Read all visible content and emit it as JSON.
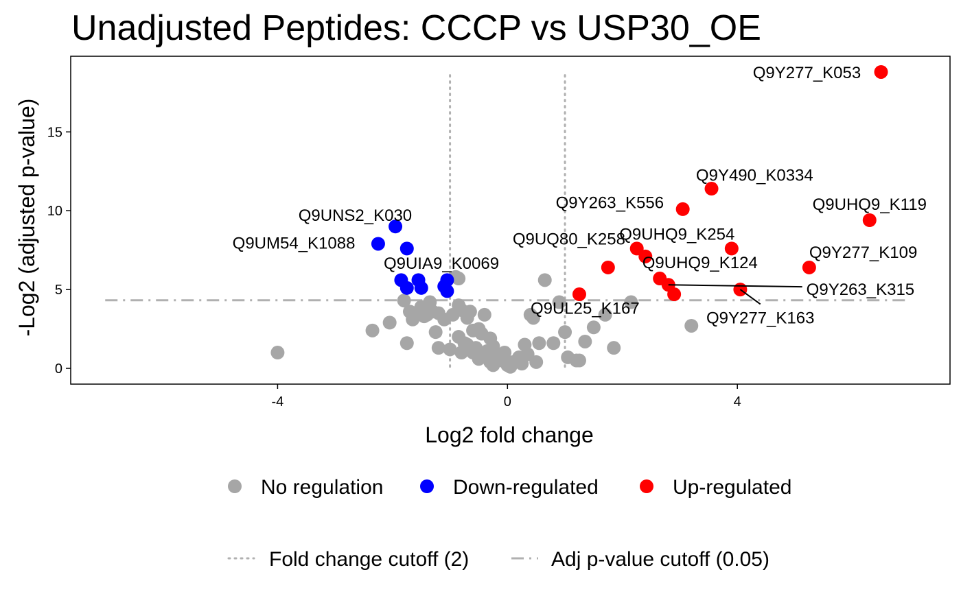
{
  "chart_data": {
    "type": "scatter",
    "title": "Unadjusted Peptides: CCCP vs USP30_OE",
    "xlabel": "Log2 fold change",
    "ylabel": "-Log2 (adjusted p-value)",
    "xlim": [
      -7.6,
      7.7
    ],
    "ylim": [
      -1.0,
      19.8
    ],
    "x_ticks": [
      -4,
      0,
      4
    ],
    "x_tick_labels": [
      "-4",
      "0",
      "4"
    ],
    "y_ticks": [
      0,
      5,
      10,
      15
    ],
    "y_tick_labels": [
      "0",
      "5",
      "10",
      "15"
    ],
    "grid": false,
    "legend_position": "bottom",
    "thresholds": {
      "fold_change_lines": [
        -1,
        1
      ],
      "pvalue_line": 4.32
    },
    "colors": {
      "none": "#a6a6a6",
      "down": "#0000ff",
      "up": "#ff0000",
      "cutoff_line": "#b0b0b0"
    },
    "legend_points": [
      {
        "label": "No regulation",
        "color": "#a6a6a6"
      },
      {
        "label": "Down-regulated",
        "color": "#0000ff"
      },
      {
        "label": "Up-regulated",
        "color": "#ff0000"
      }
    ],
    "legend_lines": [
      {
        "label": "Fold change cutoff (2)",
        "style": "dotted"
      },
      {
        "label": "Adj p-value cutoff (0.05)",
        "style": "dashdot"
      }
    ],
    "series": [
      {
        "name": "No regulation",
        "color": "#a6a6a6",
        "points": [
          [
            -4.0,
            1.0
          ],
          [
            -2.35,
            2.4
          ],
          [
            -2.05,
            2.9
          ],
          [
            -1.8,
            4.3
          ],
          [
            -1.75,
            1.6
          ],
          [
            -1.7,
            3.6
          ],
          [
            -1.65,
            3.1
          ],
          [
            -1.55,
            3.6
          ],
          [
            -1.5,
            3.9
          ],
          [
            -1.45,
            3.3
          ],
          [
            -1.4,
            3.4
          ],
          [
            -1.35,
            4.2
          ],
          [
            -1.3,
            3.6
          ],
          [
            -1.25,
            2.3
          ],
          [
            -1.2,
            1.3
          ],
          [
            -1.2,
            3.5
          ],
          [
            -1.1,
            3.1
          ],
          [
            -1.0,
            1.2
          ],
          [
            -0.95,
            3.4
          ],
          [
            -0.9,
            5.8
          ],
          [
            -0.85,
            5.7
          ],
          [
            -0.85,
            4.0
          ],
          [
            -0.8,
            3.7
          ],
          [
            -0.75,
            1.6
          ],
          [
            -0.7,
            3.2
          ],
          [
            -0.65,
            3.6
          ],
          [
            -0.6,
            1.0
          ],
          [
            -0.55,
            1.1
          ],
          [
            -0.5,
            2.5
          ],
          [
            -0.45,
            2.2
          ],
          [
            -0.4,
            3.4
          ],
          [
            -0.3,
            1.9
          ],
          [
            -0.3,
            0.4
          ],
          [
            -0.25,
            1.4
          ],
          [
            -0.2,
            0.9
          ],
          [
            -0.15,
            0.6
          ],
          [
            -0.1,
            0.5
          ],
          [
            -0.05,
            1.0
          ],
          [
            0.0,
            0.2
          ],
          [
            0.05,
            0.1
          ],
          [
            0.1,
            0.4
          ],
          [
            0.2,
            0.7
          ],
          [
            0.25,
            0.3
          ],
          [
            0.3,
            1.5
          ],
          [
            0.35,
            0.9
          ],
          [
            0.4,
            3.4
          ],
          [
            0.45,
            3.2
          ],
          [
            0.5,
            0.4
          ],
          [
            0.55,
            1.6
          ],
          [
            0.65,
            5.6
          ],
          [
            0.8,
            1.6
          ],
          [
            0.9,
            4.2
          ],
          [
            1.0,
            2.3
          ],
          [
            1.05,
            0.7
          ],
          [
            1.2,
            0.5
          ],
          [
            1.25,
            0.5
          ],
          [
            1.35,
            1.7
          ],
          [
            1.5,
            2.6
          ],
          [
            1.7,
            3.4
          ],
          [
            1.85,
            1.3
          ],
          [
            2.15,
            4.2
          ],
          [
            3.2,
            2.7
          ],
          [
            -0.85,
            2.0
          ],
          [
            -0.7,
            1.5
          ],
          [
            -0.55,
            1.3
          ],
          [
            -0.5,
            0.6
          ],
          [
            -0.35,
            1.1
          ],
          [
            -0.6,
            2.4
          ],
          [
            -0.45,
            0.8
          ],
          [
            -0.65,
            1.2
          ],
          [
            -0.8,
            1.0
          ],
          [
            -0.25,
            0.2
          ]
        ]
      },
      {
        "name": "Down-regulated",
        "color": "#0000ff",
        "points": [
          [
            -2.25,
            7.9
          ],
          [
            -1.95,
            9.0
          ],
          [
            -1.75,
            7.6
          ],
          [
            -1.85,
            5.6
          ],
          [
            -1.75,
            5.1
          ],
          [
            -1.55,
            5.6
          ],
          [
            -1.5,
            5.1
          ],
          [
            -1.1,
            5.2
          ],
          [
            -1.05,
            5.6
          ],
          [
            -1.05,
            4.9
          ]
        ]
      },
      {
        "name": "Up-regulated",
        "color": "#ff0000",
        "points": [
          [
            6.5,
            18.8
          ],
          [
            3.55,
            11.4
          ],
          [
            3.05,
            10.1
          ],
          [
            6.3,
            9.4
          ],
          [
            2.25,
            7.6
          ],
          [
            2.4,
            7.1
          ],
          [
            3.9,
            7.6
          ],
          [
            1.75,
            6.4
          ],
          [
            5.25,
            6.4
          ],
          [
            2.65,
            5.7
          ],
          [
            2.8,
            5.3
          ],
          [
            2.9,
            4.7
          ],
          [
            4.05,
            5.0
          ],
          [
            1.25,
            4.7
          ]
        ]
      }
    ],
    "annotations": [
      {
        "text": "Q9Y277_K053",
        "x": 6.5,
        "y": 18.8,
        "label_x": 6.15,
        "label_y": 18.75,
        "anchor": "end",
        "leader": false
      },
      {
        "text": "Q9Y490_K0334",
        "x": 3.55,
        "y": 11.4,
        "label_x": 4.3,
        "label_y": 12.25,
        "anchor": "middle",
        "leader": false
      },
      {
        "text": "Q9Y263_K556",
        "x": 3.05,
        "y": 10.1,
        "label_x": 2.72,
        "label_y": 10.5,
        "anchor": "end",
        "leader": false
      },
      {
        "text": "Q9UHQ9_K119",
        "x": 6.3,
        "y": 9.4,
        "label_x": 6.3,
        "label_y": 10.4,
        "anchor": "middle",
        "leader": false
      },
      {
        "text": "Q9UNS2_K030",
        "x": -1.95,
        "y": 9.0,
        "label_x": -2.65,
        "label_y": 9.7,
        "anchor": "middle",
        "leader": false
      },
      {
        "text": "Q9UHQ9_K254",
        "x": 3.9,
        "y": 7.6,
        "label_x": 2.95,
        "label_y": 8.5,
        "anchor": "middle",
        "leader": false
      },
      {
        "text": "Q9UQ80_K258",
        "x": 2.25,
        "y": 7.6,
        "label_x": 2.05,
        "label_y": 8.2,
        "anchor": "end",
        "leader": false
      },
      {
        "text": "Q9UM54_K1088",
        "x": -2.25,
        "y": 7.9,
        "label_x": -2.65,
        "label_y": 7.95,
        "anchor": "end",
        "leader": false
      },
      {
        "text": "Q9Y277_K109",
        "x": 5.25,
        "y": 6.4,
        "label_x": 5.25,
        "label_y": 7.35,
        "anchor": "start",
        "leader": false
      },
      {
        "text": "Q9UIA9_K0069",
        "x": -1.05,
        "y": 5.6,
        "label_x": -1.15,
        "label_y": 6.65,
        "anchor": "middle",
        "leader": false
      },
      {
        "text": "Q9UHQ9_K124",
        "x": 2.65,
        "y": 5.7,
        "label_x": 3.35,
        "label_y": 6.7,
        "anchor": "middle",
        "leader": false
      },
      {
        "text": "Q9Y263_K315",
        "x": 2.8,
        "y": 5.3,
        "label_x": 5.2,
        "label_y": 5.0,
        "anchor": "start",
        "leader": true
      },
      {
        "text": "Q9UL25_K167",
        "x": 1.25,
        "y": 4.7,
        "label_x": 1.35,
        "label_y": 3.8,
        "anchor": "middle",
        "leader": false
      },
      {
        "text": "Q9Y277_K163",
        "x": 4.05,
        "y": 5.0,
        "label_x": 4.4,
        "label_y": 3.2,
        "anchor": "middle",
        "leader": true
      }
    ]
  }
}
